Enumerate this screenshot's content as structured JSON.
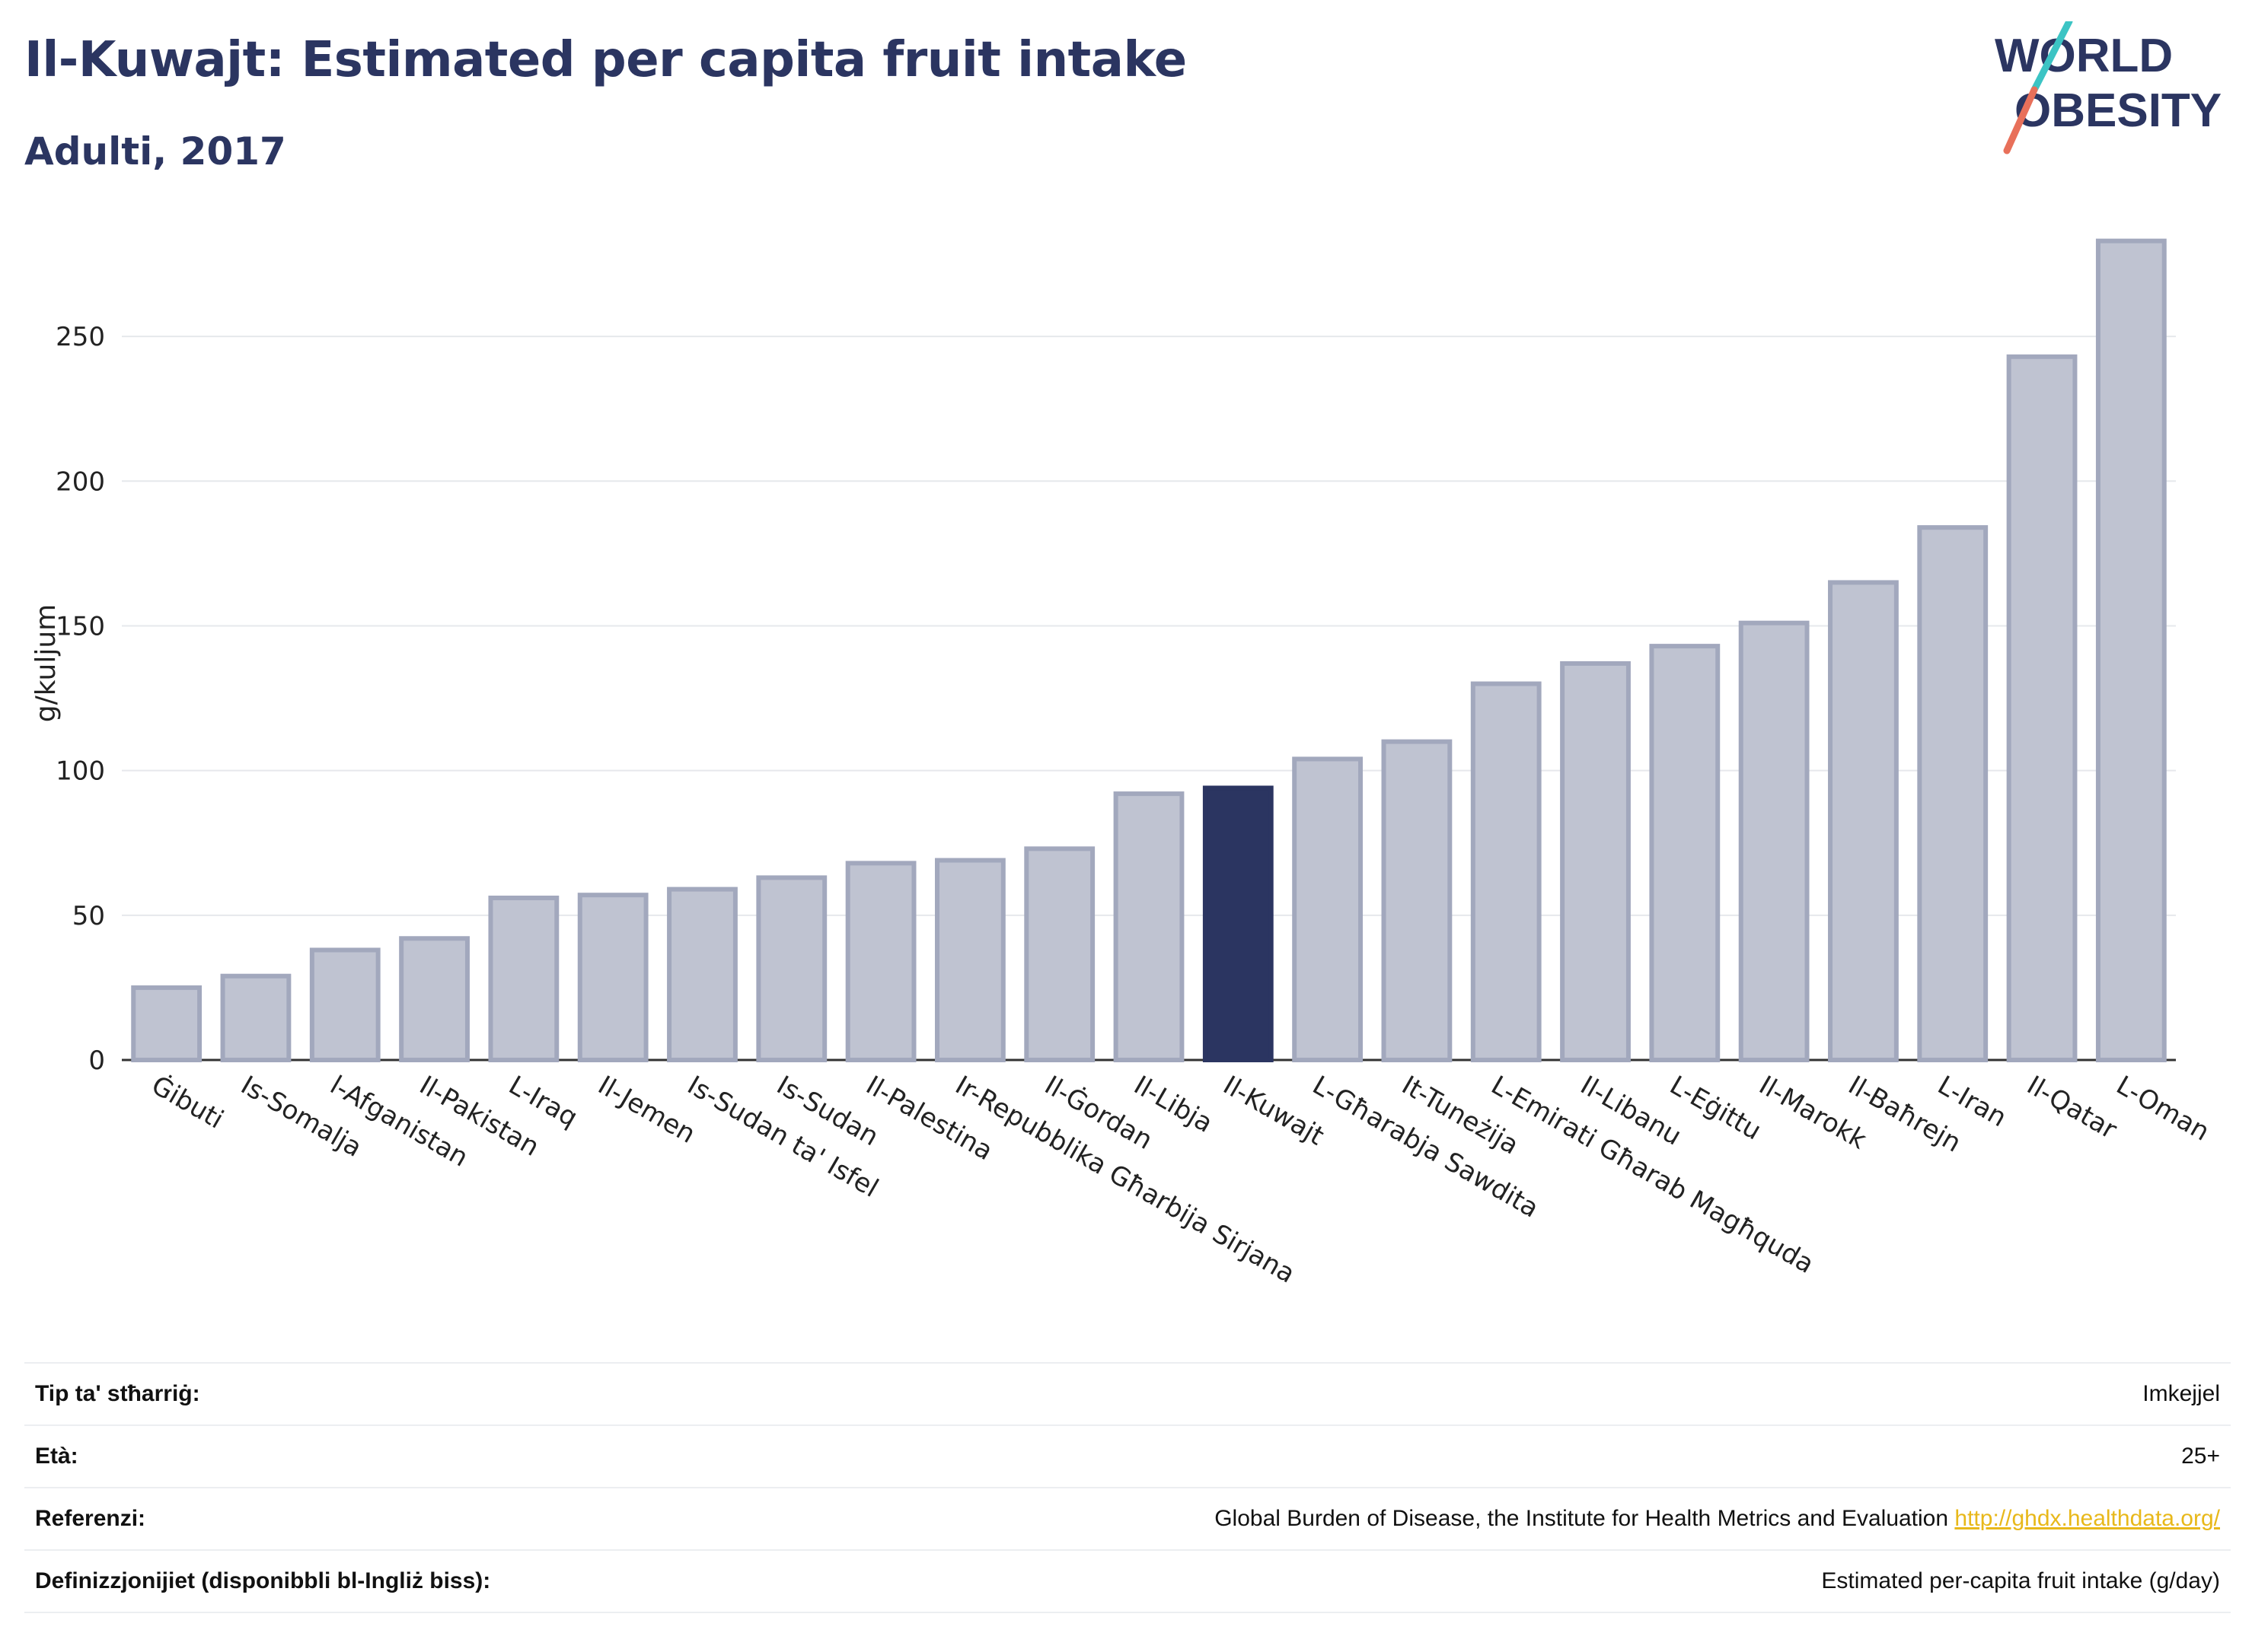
{
  "header": {
    "title": "Il-Kuwajt: Estimated per capita fruit intake",
    "subtitle": "Adulti, 2017"
  },
  "logo": {
    "line1": "WORLD",
    "line2": "OBESITY",
    "colors": {
      "text": "#2b3561",
      "slash_teal": "#3cc4c4",
      "slash_coral": "#e8705a"
    }
  },
  "colors": {
    "bar_default": "#bfc3d1",
    "bar_default_border": "#a2a8bd",
    "bar_highlight": "#2b3561",
    "grid": "#e6e8ec",
    "axis_text": "#222222"
  },
  "chart_data": {
    "type": "bar",
    "ylabel": "g/kuljum",
    "xlabel": "",
    "ylim": [
      0,
      290
    ],
    "yticks": [
      0,
      50,
      100,
      150,
      200,
      250
    ],
    "grid": true,
    "highlight": "Il-Kuwajt",
    "categories": [
      "Ġibuti",
      "Is-Somalja",
      "l-Afganistan",
      "Il-Pakistan",
      "L-Iraq",
      "Il-Jemen",
      "Is-Sudan ta' Isfel",
      "Is-Sudan",
      "Il-Palestina",
      "Ir-Repubblika Għarbija Sirjana",
      "Il-Ġordan",
      "Il-Libja",
      "Il-Kuwajt",
      "L-Għarabja Sawdita",
      "It-Tuneżija",
      "L-Emirati Għarab Magħquda",
      "Il-Libanu",
      "L-Eġittu",
      "Il-Marokk",
      "Il-Baħrejn",
      "L-Iran",
      "Il-Qatar",
      "L-Oman"
    ],
    "values": [
      25,
      29,
      38,
      42,
      56,
      57,
      59,
      63,
      68,
      69,
      73,
      92,
      94,
      104,
      110,
      130,
      137,
      143,
      151,
      165,
      184,
      243,
      283
    ]
  },
  "meta": {
    "rows": [
      {
        "label": "Tip ta' stħarriġ:",
        "value": "Imkejjel"
      },
      {
        "label": "Età:",
        "value": "25+"
      },
      {
        "label": "Referenzi:",
        "value": "Global Burden of Disease, the Institute for Health Metrics and Evaluation",
        "link": "http://ghdx.healthdata.org/"
      },
      {
        "label": "Definizzjonijiet (disponibbli bl-Ingliż biss):",
        "value": "Estimated per-capita fruit intake (g/day)"
      }
    ]
  }
}
